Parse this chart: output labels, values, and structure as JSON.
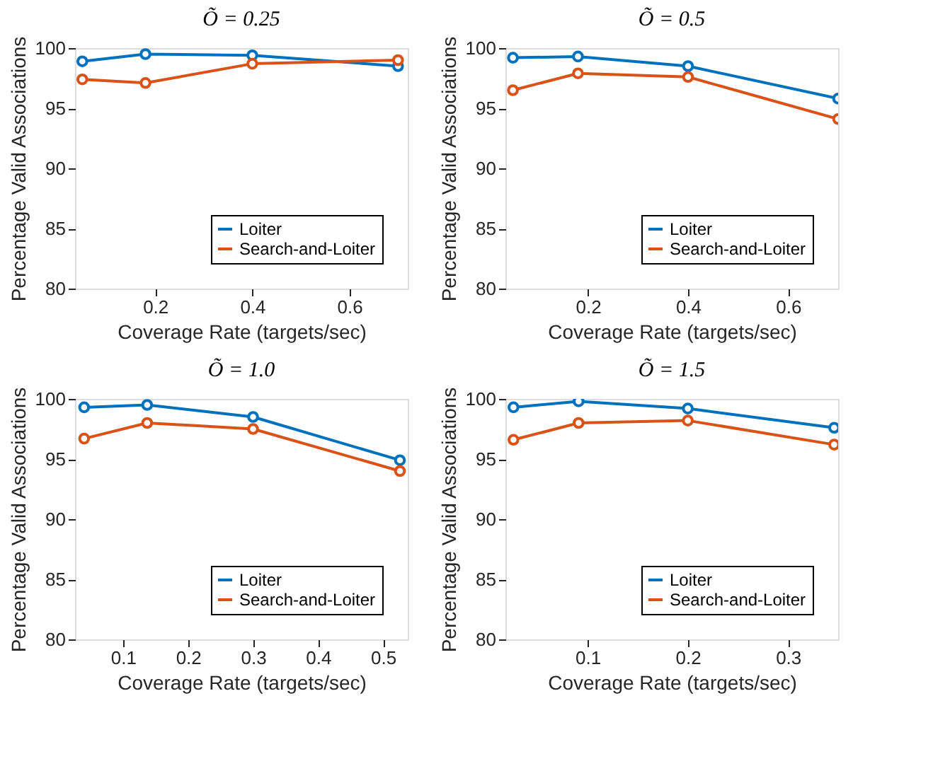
{
  "chart_data": [
    {
      "type": "line",
      "title": "Õ = 0.25",
      "xlabel": "Coverage Rate (targets/sec)",
      "ylabel": "Percentage Valid Associations",
      "x": [
        0.05,
        0.18,
        0.4,
        0.7
      ],
      "xlim": [
        0.035,
        0.72
      ],
      "xticks": [
        0.2,
        0.4,
        0.6
      ],
      "ylim": [
        80,
        100
      ],
      "yticks": [
        80,
        85,
        90,
        95,
        100
      ],
      "legend": "bottom right",
      "marker": "circle",
      "grid": false,
      "series": [
        {
          "name": "Loiter",
          "color": "#0072bd",
          "values": [
            98.9,
            99.5,
            99.4,
            98.5
          ]
        },
        {
          "name": "Search-and-Loiter",
          "color": "#d95319",
          "values": [
            97.4,
            97.1,
            98.7,
            99.0
          ]
        }
      ]
    },
    {
      "type": "line",
      "title": "Õ = 0.5",
      "xlabel": "Coverage Rate (targets/sec)",
      "ylabel": "Percentage Valid Associations",
      "x": [
        0.05,
        0.18,
        0.4,
        0.7
      ],
      "xlim": [
        0.035,
        0.7
      ],
      "xticks": [
        0.2,
        0.4,
        0.6
      ],
      "ylim": [
        80,
        100
      ],
      "yticks": [
        80,
        85,
        90,
        95,
        100
      ],
      "legend": "bottom right",
      "marker": "circle",
      "grid": false,
      "series": [
        {
          "name": "Loiter",
          "color": "#0072bd",
          "values": [
            99.2,
            99.3,
            98.5,
            95.8
          ]
        },
        {
          "name": "Search-and-Loiter",
          "color": "#d95319",
          "values": [
            96.5,
            97.9,
            97.6,
            94.1
          ]
        }
      ]
    },
    {
      "type": "line",
      "title": "Õ = 1.0",
      "xlabel": "Coverage Rate (targets/sec)",
      "ylabel": "Percentage Valid Associations",
      "x": [
        0.04,
        0.137,
        0.3,
        0.526
      ],
      "xlim": [
        0.026,
        0.538
      ],
      "xticks": [
        0.1,
        0.2,
        0.3,
        0.4,
        0.5
      ],
      "ylim": [
        80,
        100
      ],
      "yticks": [
        80,
        85,
        90,
        95,
        100
      ],
      "legend": "bottom right",
      "marker": "circle",
      "grid": false,
      "series": [
        {
          "name": "Loiter",
          "color": "#0072bd",
          "values": [
            99.3,
            99.5,
            98.5,
            94.9
          ]
        },
        {
          "name": "Search-and-Loiter",
          "color": "#d95319",
          "values": [
            96.7,
            98.0,
            97.5,
            94.0
          ]
        }
      ]
    },
    {
      "type": "line",
      "title": "Õ = 1.5",
      "xlabel": "Coverage Rate (targets/sec)",
      "ylabel": "Percentage Valid Associations",
      "x": [
        0.026,
        0.091,
        0.2,
        0.346
      ],
      "xlim": [
        0.018,
        0.35
      ],
      "xticks": [
        0.1,
        0.2,
        0.3
      ],
      "ylim": [
        80,
        100
      ],
      "yticks": [
        80,
        85,
        90,
        95,
        100
      ],
      "legend": "bottom right",
      "marker": "circle",
      "grid": false,
      "series": [
        {
          "name": "Loiter",
          "color": "#0072bd",
          "values": [
            99.3,
            99.8,
            99.2,
            97.6
          ]
        },
        {
          "name": "Search-and-Loiter",
          "color": "#d95319",
          "values": [
            96.6,
            98.0,
            98.2,
            96.2
          ]
        }
      ]
    }
  ]
}
